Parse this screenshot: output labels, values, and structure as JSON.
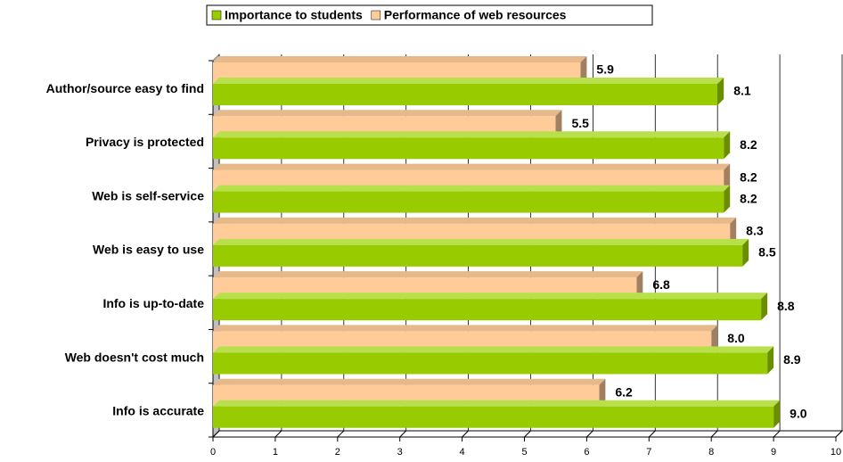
{
  "chart_data": {
    "type": "bar",
    "orientation": "horizontal",
    "categories": [
      "Author/source easy to find",
      "Privacy is protected",
      "Web is self-service",
      "Web is easy to use",
      "Info is up-to-date",
      "Web doesn't cost much",
      "Info is accurate"
    ],
    "series": [
      {
        "name": "Importance to students",
        "color": "#99cc00",
        "values": [
          8.1,
          8.2,
          8.2,
          8.5,
          8.8,
          8.9,
          9.0
        ],
        "value_labels": [
          "8.1",
          "8.2",
          "8.2",
          "8.5",
          "8.8",
          "8.9",
          "9.0"
        ]
      },
      {
        "name": "Performance of web resources",
        "color": "#ffcc99",
        "values": [
          5.9,
          5.5,
          8.2,
          8.3,
          6.8,
          8.0,
          6.2
        ],
        "value_labels": [
          "5.9",
          "5.5",
          "8.2",
          "8.3",
          "6.8",
          "8.0",
          "6.2"
        ]
      }
    ],
    "xlim": [
      0,
      10
    ],
    "xticks": [
      0,
      1,
      2,
      3,
      4,
      5,
      6,
      7,
      8,
      9,
      10
    ],
    "grid": true,
    "legend": "top"
  }
}
